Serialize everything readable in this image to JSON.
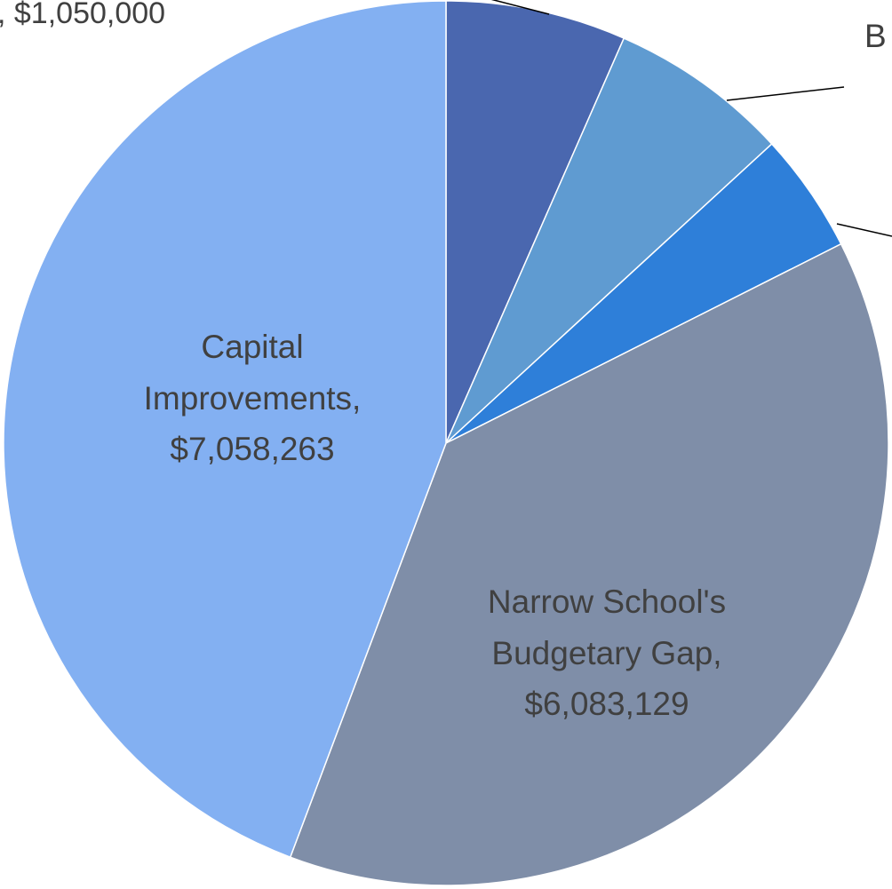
{
  "chart_data": {
    "type": "pie",
    "title": "",
    "slices": [
      {
        "label": "",
        "value": 1050000,
        "color": "#4A67AF"
      },
      {
        "label": "",
        "value": 1050000,
        "color": "#5F9BD1"
      },
      {
        "label": "",
        "value": 700000,
        "color": "#2E7FD9"
      },
      {
        "label": "Narrow School's Budgetary Gap",
        "value": 6083129,
        "value_text": "$6,083,129",
        "color": "#7F8EA8",
        "label_lines": [
          "Narrow School's",
          "Budgetary Gap,",
          "$6,083,129"
        ]
      },
      {
        "label": "Capital Improvements",
        "value": 7058263,
        "value_text": "$7,058,263",
        "color": "#83B0F2",
        "label_lines": [
          "Capital",
          "Improvements,",
          "$7,058,263"
        ]
      }
    ],
    "partial_labels": {
      "top_left": ", $1,050,000",
      "top_right": "B"
    }
  }
}
